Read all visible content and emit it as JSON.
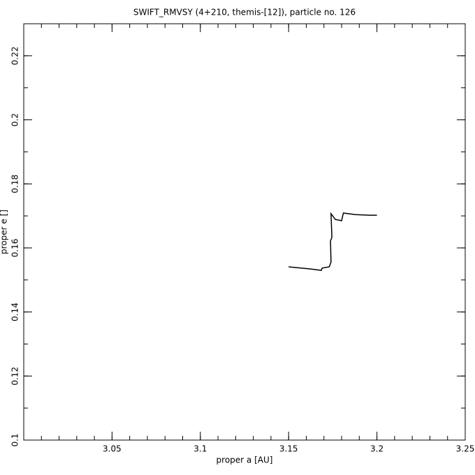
{
  "chart_data": {
    "type": "line",
    "title": "SWIFT_RMVSY (4+210, themis-[12]), particle no. 126",
    "x_label": "proper a [AU]",
    "y_label": "proper e []",
    "xlim": [
      3.0,
      3.25
    ],
    "xticks": [
      3.05,
      3.1,
      3.15,
      3.2,
      3.25
    ],
    "ylim": [
      0.1,
      0.23
    ],
    "yticks": [
      0.1,
      0.12,
      0.14,
      0.16,
      0.18,
      0.2,
      0.22
    ],
    "grid": false,
    "series": [
      {
        "color": "#000000",
        "x": [
          3.15,
          3.157,
          3.1626,
          3.1685,
          3.169,
          3.173,
          3.174,
          3.1737,
          3.1745,
          3.174,
          3.1764,
          3.18,
          3.181,
          3.188,
          3.196,
          3.2
        ],
        "values": [
          0.1541,
          0.1537,
          0.1534,
          0.153,
          0.1537,
          0.1541,
          0.1556,
          0.1622,
          0.1633,
          0.1707,
          0.1689,
          0.1685,
          0.1709,
          0.1704,
          0.1702,
          0.1702
        ]
      }
    ]
  }
}
